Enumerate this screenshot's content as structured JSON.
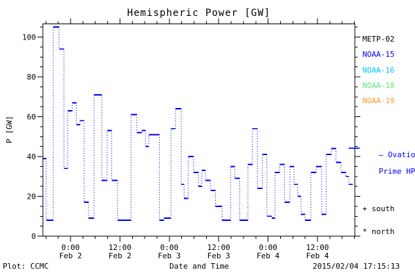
{
  "title": "Hemispheric Power [GW]",
  "colors": {
    "frame": "#000000",
    "data_line": "#0000f0",
    "background": "#ffffff"
  },
  "y_axis": {
    "label": "P [GW]",
    "tick_labels": [
      "0",
      "20",
      "40",
      "60",
      "80",
      "100"
    ],
    "tick_values": [
      0,
      20,
      40,
      60,
      80,
      100
    ],
    "minor_step": 5,
    "range": [
      0,
      106.6
    ]
  },
  "x_axis": {
    "label": "Date and Time",
    "major_ticks": [
      {
        "hour": 0,
        "time": "0:00",
        "date": "Feb 2"
      },
      {
        "hour": 12,
        "time": "12:00",
        "date": "Feb 2"
      },
      {
        "hour": 24,
        "time": "0:00",
        "date": "Feb 3"
      },
      {
        "hour": 36,
        "time": "12:00",
        "date": "Feb 3"
      },
      {
        "hour": 48,
        "time": "0:00",
        "date": "Feb 4"
      },
      {
        "hour": 60,
        "time": "12:00",
        "date": "Feb 4"
      }
    ],
    "minor_step_hours": 3,
    "range_hours": [
      -6.7,
      69.1
    ]
  },
  "legend": {
    "satellites": [
      {
        "label": "METP-02",
        "color": "#000000"
      },
      {
        "label": "NOAA-15",
        "color": "#0000f0"
      },
      {
        "label": "NOAA-16",
        "color": "#00c8f0"
      },
      {
        "label": "NOAA-18",
        "color": "#5ce87a"
      },
      {
        "label": "NOAA-19",
        "color": "#ff9a28"
      }
    ],
    "curve_label_line1": "– Ovation",
    "curve_label_line2": "Prime HPI",
    "curve_color": "#0000f0",
    "south": "+ south",
    "north": "* north"
  },
  "footer": {
    "left": "Plot: CCMC",
    "right": "2015/02/04 17:15:13"
  },
  "chart_data": {
    "type": "line",
    "style": "stair-step: solid horizontal satellite-pass segments joined by dotted vertical connectors",
    "title": "Hemispheric Power [GW]",
    "xlabel": "Date and Time",
    "ylabel": "P [GW]",
    "x_unit": "hours since 2015-02-02 00:00",
    "y_unit": "GW",
    "ylim": [
      0,
      106.6
    ],
    "xlim_hours": [
      -6.7,
      69.1
    ],
    "grid": false,
    "segments": [
      [
        -6.7,
        -5.9,
        39
      ],
      [
        -5.9,
        -4.2,
        8
      ],
      [
        -4.2,
        -2.8,
        105
      ],
      [
        -2.8,
        -1.6,
        94
      ],
      [
        -1.6,
        -0.7,
        34
      ],
      [
        -0.7,
        0.4,
        63
      ],
      [
        0.4,
        1.4,
        67
      ],
      [
        1.4,
        2.3,
        56
      ],
      [
        2.3,
        3.3,
        58
      ],
      [
        3.3,
        4.4,
        17
      ],
      [
        4.4,
        5.7,
        9
      ],
      [
        5.7,
        7.6,
        71
      ],
      [
        7.6,
        8.9,
        28
      ],
      [
        8.9,
        10.0,
        53
      ],
      [
        10.0,
        11.4,
        28
      ],
      [
        11.4,
        14.7,
        8
      ],
      [
        14.7,
        16.1,
        61
      ],
      [
        16.1,
        17.3,
        52
      ],
      [
        17.3,
        18.2,
        53
      ],
      [
        18.2,
        19.0,
        45
      ],
      [
        19.0,
        21.6,
        51
      ],
      [
        21.6,
        22.7,
        8
      ],
      [
        22.7,
        24.4,
        9
      ],
      [
        24.4,
        25.5,
        54
      ],
      [
        25.5,
        26.9,
        64
      ],
      [
        26.9,
        27.6,
        26
      ],
      [
        27.6,
        28.6,
        19
      ],
      [
        28.6,
        29.9,
        40
      ],
      [
        29.9,
        31.1,
        32
      ],
      [
        31.1,
        31.9,
        25
      ],
      [
        31.9,
        32.8,
        33
      ],
      [
        32.8,
        34.0,
        28
      ],
      [
        34.0,
        35.2,
        23
      ],
      [
        35.2,
        36.8,
        15
      ],
      [
        36.8,
        38.9,
        8
      ],
      [
        38.9,
        39.9,
        35
      ],
      [
        39.9,
        41.1,
        29
      ],
      [
        41.1,
        43.1,
        8
      ],
      [
        43.1,
        44.2,
        36
      ],
      [
        44.2,
        45.4,
        54
      ],
      [
        45.4,
        46.6,
        24
      ],
      [
        46.6,
        47.7,
        41
      ],
      [
        47.7,
        48.9,
        10
      ],
      [
        48.9,
        49.7,
        9
      ],
      [
        49.7,
        50.8,
        32
      ],
      [
        50.8,
        52.0,
        36
      ],
      [
        52.0,
        53.3,
        17
      ],
      [
        53.3,
        54.3,
        35
      ],
      [
        54.3,
        55.2,
        26
      ],
      [
        55.2,
        56.0,
        20
      ],
      [
        56.0,
        57.0,
        11
      ],
      [
        57.0,
        58.4,
        8
      ],
      [
        58.4,
        59.7,
        32
      ],
      [
        59.7,
        61.0,
        35
      ],
      [
        61.0,
        62.1,
        11
      ],
      [
        62.1,
        63.4,
        41
      ],
      [
        63.4,
        64.5,
        44
      ],
      [
        64.5,
        65.7,
        37
      ],
      [
        65.7,
        66.9,
        32
      ],
      [
        66.9,
        67.6,
        30
      ],
      [
        67.6,
        68.6,
        26
      ]
    ]
  }
}
